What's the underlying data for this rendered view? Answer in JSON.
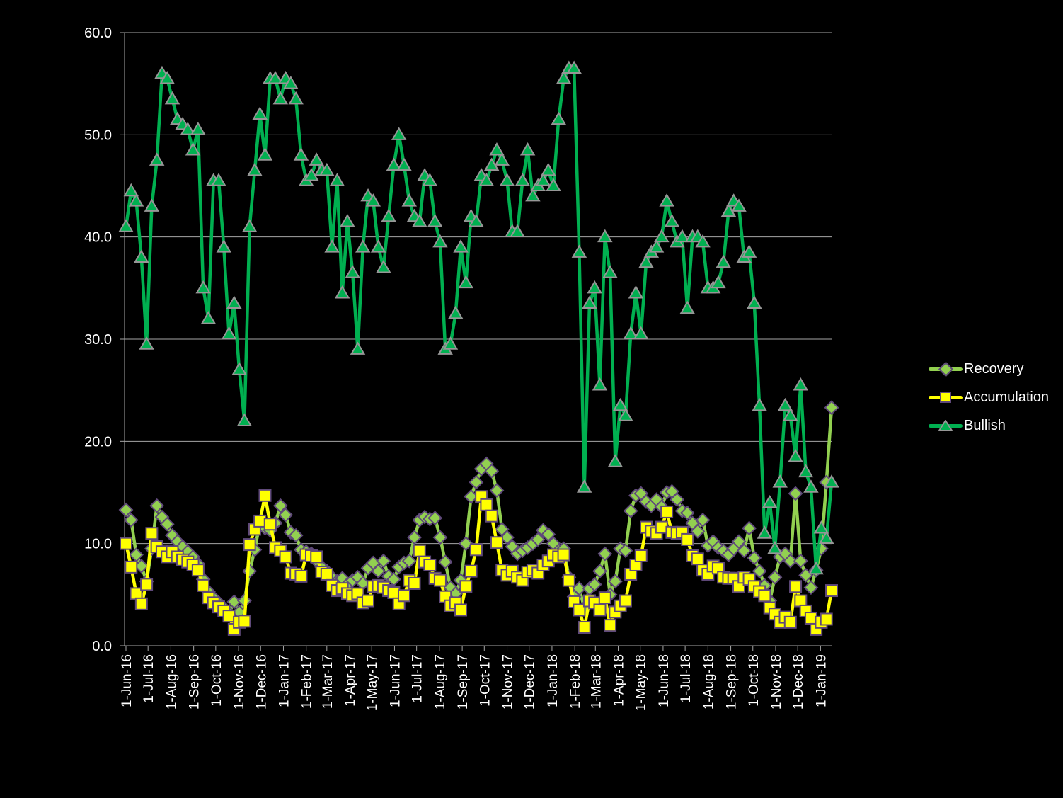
{
  "window": {
    "background": "#000000",
    "text_color": "#FFFFFF"
  },
  "chart_data": {
    "type": "line",
    "title": "",
    "xlabel": "",
    "ylabel": "",
    "ylim": [
      0,
      60
    ],
    "grid": "horizontal",
    "gridline_color": "#A6A6A6",
    "legend_position": "right",
    "frequency": "weekly",
    "x_start_label": "1-Jun-16",
    "x_tick_labels": [
      "1-Jun-16",
      "1-Jul-16",
      "1-Aug-16",
      "1-Sep-16",
      "1-Oct-16",
      "1-Nov-16",
      "1-Dec-16",
      "1-Jan-17",
      "1-Feb-17",
      "1-Mar-17",
      "1-Apr-17",
      "1-May-17",
      "1-Jun-17",
      "1-Jul-17",
      "1-Aug-17",
      "1-Sep-17",
      "1-Oct-17",
      "1-Nov-17",
      "1-Dec-17",
      "1-Jan-18",
      "1-Feb-18",
      "1-Mar-18",
      "1-Apr-18",
      "1-May-18",
      "1-Jun-18",
      "1-Jul-18",
      "1-Aug-18",
      "1-Sep-18",
      "1-Oct-18",
      "1-Nov-18",
      "1-Dec-18",
      "1-Jan-19"
    ],
    "y_tick_labels": [
      "0.0",
      "10.0",
      "20.0",
      "30.0",
      "40.0",
      "50.0",
      "60.0"
    ],
    "series": [
      {
        "name": "Recovery",
        "color": "#92D050",
        "marker": "diamond",
        "marker_border": "#5F497A",
        "values": [
          13.3,
          12.3,
          8.9,
          7.8,
          6.3,
          9.5,
          13.7,
          12.6,
          11.9,
          10.8,
          10.2,
          9.7,
          9.2,
          8.7,
          8.0,
          6.5,
          5.3,
          4.7,
          4.2,
          3.7,
          3.2,
          4.3,
          3.3,
          4.4,
          7.3,
          9.4,
          12.0,
          11.5,
          11.3,
          12.0,
          13.7,
          12.8,
          11.1,
          10.8,
          9.4,
          9.2,
          9.0,
          8.3,
          7.7,
          7.3,
          6.7,
          6.3,
          6.6,
          6.0,
          6.4,
          6.7,
          6.1,
          7.6,
          8.1,
          7.3,
          8.3,
          6.8,
          6.5,
          7.7,
          8.1,
          8.3,
          10.6,
          12.3,
          12.6,
          12.4,
          12.5,
          10.6,
          8.2,
          5.7,
          5.1,
          6.4,
          10.0,
          14.6,
          16.0,
          17.3,
          17.8,
          17.1,
          15.2,
          11.4,
          10.6,
          9.7,
          9.0,
          9.3,
          9.6,
          10.0,
          10.4,
          11.3,
          10.9,
          10.0,
          9.3,
          9.5,
          6.7,
          4.8,
          5.6,
          3.7,
          5.6,
          6.0,
          7.3,
          9.0,
          5.0,
          6.3,
          9.5,
          9.3,
          13.2,
          14.7,
          14.9,
          14.1,
          13.7,
          14.3,
          13.6,
          15.0,
          15.1,
          14.3,
          13.2,
          13.0,
          12.0,
          11.2,
          12.3,
          9.8,
          10.2,
          9.6,
          9.3,
          8.9,
          9.5,
          10.2,
          9.3,
          11.5,
          8.6,
          7.3,
          5.9,
          4.4,
          6.7,
          8.7,
          9.0,
          8.3,
          14.9,
          8.3,
          6.9,
          5.7,
          7.4,
          9.5,
          16.0,
          23.3
        ]
      },
      {
        "name": "Accumulation",
        "color": "#FFFF00",
        "marker": "square",
        "marker_border": "#5F497A",
        "values": [
          10.0,
          7.7,
          5.1,
          4.1,
          6.0,
          11.0,
          9.7,
          9.2,
          8.7,
          9.2,
          8.7,
          8.4,
          8.2,
          7.9,
          7.4,
          5.9,
          4.7,
          4.2,
          3.8,
          3.4,
          2.9,
          1.6,
          2.3,
          2.4,
          9.9,
          11.4,
          12.2,
          14.7,
          11.9,
          9.6,
          9.3,
          8.7,
          7.1,
          7.0,
          6.8,
          8.9,
          8.8,
          8.7,
          7.2,
          7.0,
          5.9,
          5.4,
          5.6,
          5.1,
          4.9,
          5.1,
          4.2,
          4.4,
          5.8,
          5.9,
          5.7,
          5.4,
          5.2,
          4.1,
          4.9,
          6.4,
          6.1,
          9.3,
          8.2,
          7.9,
          6.6,
          6.4,
          4.8,
          3.9,
          4.2,
          3.5,
          5.8,
          7.3,
          9.4,
          14.6,
          13.8,
          12.7,
          10.1,
          7.4,
          6.9,
          7.3,
          6.7,
          6.4,
          7.2,
          7.4,
          7.1,
          7.9,
          8.3,
          8.9,
          8.7,
          8.9,
          6.4,
          4.3,
          3.5,
          1.8,
          4.4,
          4.2,
          3.5,
          4.7,
          2.0,
          3.3,
          3.9,
          4.4,
          7.0,
          7.9,
          8.8,
          11.6,
          11.2,
          11.0,
          11.6,
          13.1,
          11.1,
          11.0,
          11.1,
          10.4,
          8.8,
          8.5,
          7.4,
          7.0,
          7.8,
          7.6,
          6.7,
          6.6,
          6.6,
          5.8,
          6.7,
          6.5,
          5.8,
          5.3,
          4.9,
          3.7,
          3.1,
          2.3,
          2.8,
          2.3,
          5.8,
          4.4,
          3.4,
          2.7,
          1.6,
          2.3,
          2.6,
          5.4
        ]
      },
      {
        "name": "Bullish",
        "color": "#00B050",
        "marker": "triangle",
        "marker_border": "#969696",
        "values": [
          41,
          44.5,
          43.5,
          38,
          29.5,
          43,
          47.5,
          56,
          55.5,
          53.5,
          51.5,
          51,
          50.5,
          48.5,
          50.5,
          35,
          32,
          45.5,
          45.5,
          39,
          30.5,
          33.5,
          27,
          22,
          41,
          46.5,
          52,
          48,
          55.5,
          55.5,
          53.5,
          55.5,
          55,
          53.5,
          48,
          45.5,
          46,
          47.5,
          46.5,
          46.5,
          39,
          45.5,
          34.5,
          41.5,
          36.5,
          29,
          39,
          44,
          43.5,
          39,
          37,
          42,
          47,
          50,
          47,
          43.5,
          42,
          41.5,
          46,
          45.5,
          41.5,
          39.5,
          29,
          29.5,
          32.5,
          39,
          35.5,
          42,
          41.5,
          46,
          45.5,
          47,
          48.5,
          47.5,
          45.5,
          40.5,
          40.5,
          45.5,
          48.5,
          44,
          45,
          45.5,
          46.5,
          45,
          51.5,
          55.5,
          56.5,
          56.5,
          38.5,
          15.5,
          33.5,
          35,
          25.5,
          40,
          36.5,
          18,
          23.5,
          22.5,
          30.5,
          34.5,
          30.5,
          37.5,
          38.5,
          39,
          40,
          43.5,
          41.5,
          39.5,
          40,
          33,
          40,
          40,
          39.5,
          35,
          35,
          35.5,
          37.5,
          42.5,
          43.5,
          43,
          38,
          38.5,
          33.5,
          23.5,
          11,
          14,
          9.5,
          16,
          23.5,
          22.5,
          18.5,
          25.5,
          17,
          15.5,
          7.5,
          11.5,
          10.5,
          16
        ]
      }
    ]
  },
  "legend": {
    "items": [
      {
        "label": "Recovery"
      },
      {
        "label": "Accumulation"
      },
      {
        "label": "Bullish"
      }
    ]
  }
}
